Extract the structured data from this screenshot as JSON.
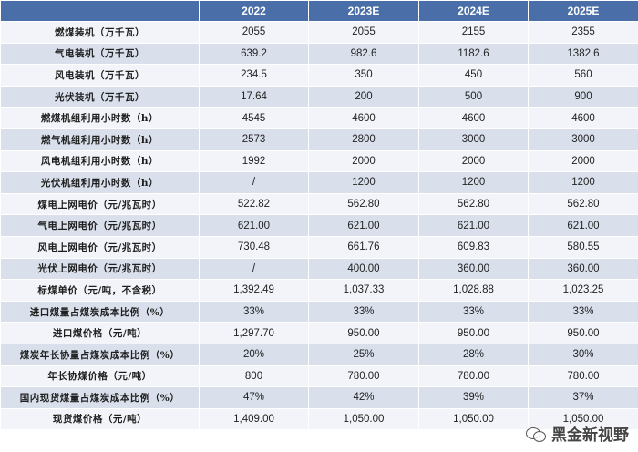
{
  "header": [
    "",
    "2022",
    "2023E",
    "2024E",
    "2025E"
  ],
  "rows": [
    {
      "label": "燃煤装机（万千瓦）",
      "values": [
        "2055",
        "2055",
        "2155",
        "2355"
      ]
    },
    {
      "label": "气电装机（万千瓦）",
      "values": [
        "639.2",
        "982.6",
        "1182.6",
        "1382.6"
      ]
    },
    {
      "label": "风电装机（万千瓦）",
      "values": [
        "234.5",
        "350",
        "450",
        "560"
      ]
    },
    {
      "label": "光伏装机（万千瓦）",
      "values": [
        "17.64",
        "200",
        "500",
        "900"
      ]
    },
    {
      "label": "燃煤机组利用小时数（h）",
      "values": [
        "4545",
        "4600",
        "4600",
        "4600"
      ]
    },
    {
      "label": "燃气机组利用小时数（h）",
      "values": [
        "2573",
        "2800",
        "3000",
        "3000"
      ]
    },
    {
      "label": "风电机组利用小时数（h）",
      "values": [
        "1992",
        "2000",
        "2000",
        "2000"
      ]
    },
    {
      "label": "光伏机组利用小时数（h）",
      "values": [
        "/",
        "1200",
        "1200",
        "1200"
      ]
    },
    {
      "label": "煤电上网电价（元/兆瓦时）",
      "values": [
        "522.82",
        "562.80",
        "562.80",
        "562.80"
      ]
    },
    {
      "label": "气电上网电价（元/兆瓦时）",
      "values": [
        "621.00",
        "621.00",
        "621.00",
        "621.00"
      ]
    },
    {
      "label": "风电上网电价（元/兆瓦时）",
      "values": [
        "730.48",
        "661.76",
        "609.83",
        "580.55"
      ]
    },
    {
      "label": "光伏上网电价（元/兆瓦时）",
      "values": [
        "/",
        "400.00",
        "360.00",
        "360.00"
      ]
    },
    {
      "label": "标煤单价（元/吨，不含税）",
      "values": [
        "1,392.49",
        "1,037.33",
        "1,028.88",
        "1,023.25"
      ]
    },
    {
      "label": "进口煤量占煤炭成本比例（%）",
      "values": [
        "33%",
        "33%",
        "33%",
        "33%"
      ]
    },
    {
      "label": "进口煤价格（元/吨）",
      "values": [
        "1,297.70",
        "950.00",
        "950.00",
        "950.00"
      ]
    },
    {
      "label": "煤炭年长协量占煤炭成本比例（%）",
      "values": [
        "20%",
        "25%",
        "28%",
        "30%"
      ]
    },
    {
      "label": "年长协煤价格（元/吨）",
      "values": [
        "800",
        "780.00",
        "780.00",
        "780.00"
      ]
    },
    {
      "label": "国内现货煤量占煤炭成本比例（%）",
      "values": [
        "47%",
        "42%",
        "39%",
        "37%"
      ]
    },
    {
      "label": "现货煤价格（元/吨）",
      "values": [
        "1,409.00",
        "1,050.00",
        "1,050.00",
        "1,050.00"
      ]
    }
  ],
  "watermark": {
    "text": "黑金新视野",
    "icon": "wechat-icon"
  }
}
